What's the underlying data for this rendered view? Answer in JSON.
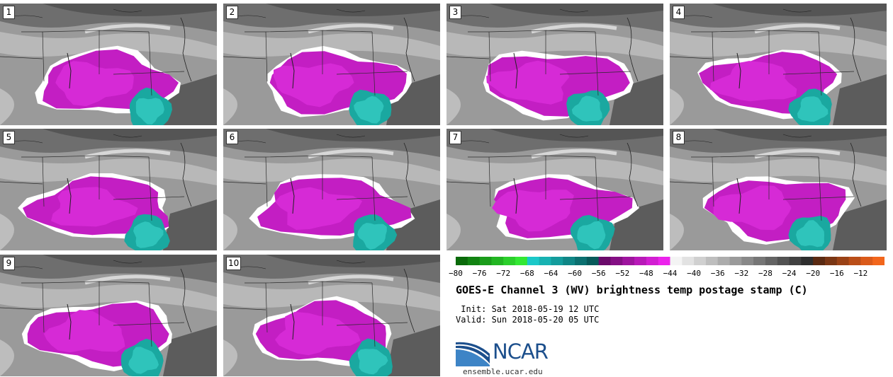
{
  "panels": [
    {
      "label": "1"
    },
    {
      "label": "2"
    },
    {
      "label": "3"
    },
    {
      "label": "4"
    },
    {
      "label": "5"
    },
    {
      "label": "6"
    },
    {
      "label": "7"
    },
    {
      "label": "8"
    },
    {
      "label": "9"
    },
    {
      "label": "10"
    }
  ],
  "colorbar": {
    "tick_labels": [
      "−80",
      "−76",
      "−72",
      "−68",
      "−64",
      "−60",
      "−56",
      "−52",
      "−48",
      "−44",
      "−40",
      "−36",
      "−32",
      "−28",
      "−24",
      "−20",
      "−16",
      "−12"
    ],
    "colors": [
      "#0a6a0a",
      "#128312",
      "#1a9c1a",
      "#22b522",
      "#2bcf2b",
      "#33e833",
      "#1bc8c8",
      "#17b2b2",
      "#139c9c",
      "#0f8686",
      "#0b7070",
      "#075a5a",
      "#6a0a6a",
      "#840f84",
      "#9e149e",
      "#b819b8",
      "#d21ed2",
      "#ec23ec",
      "#f4f4f4",
      "#e2e2e2",
      "#d0d0d0",
      "#bebebe",
      "#acacac",
      "#9a9a9a",
      "#888888",
      "#767676",
      "#646464",
      "#525252",
      "#404040",
      "#2e2e2e",
      "#5a2a12",
      "#7a3614",
      "#9a4216",
      "#ba4e18",
      "#da5a1a",
      "#f2661c"
    ]
  },
  "chart_data": {
    "type": "heatmap",
    "title": "GOES-E Channel 3 (WV) brightness temp postage stamp (C)",
    "panels": [
      "1",
      "2",
      "3",
      "4",
      "5",
      "6",
      "7",
      "8",
      "9",
      "10"
    ],
    "colorbar_range": [
      -80,
      -10
    ],
    "colorbar_ticks": [
      -80,
      -76,
      -72,
      -68,
      -64,
      -60,
      -56,
      -52,
      -48,
      -44,
      -40,
      -36,
      -32,
      -28,
      -24,
      -20,
      -16,
      -12
    ]
  },
  "title": "GOES-E Channel 3 (WV) brightness temp postage stamp (C)",
  "init_line": " Init: Sat 2018-05-19 12 UTC",
  "valid_line": "Valid: Sun 2018-05-20 05 UTC",
  "logo": {
    "text": "NCAR",
    "site": "ensemble.ucar.edu",
    "brand_color": "#1c4f8c"
  }
}
